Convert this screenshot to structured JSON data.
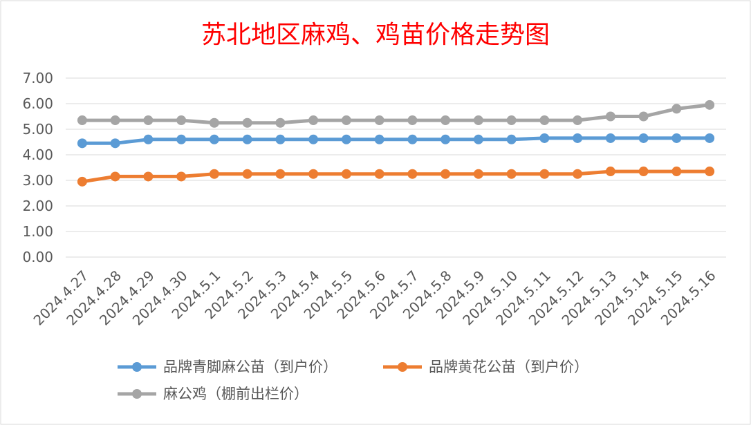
{
  "chart_data": {
    "type": "line",
    "title": "苏北地区麻鸡、鸡苗价格走势图",
    "categories": [
      "2024.4.27",
      "2024.4.28",
      "2024.4.29",
      "2024.4.30",
      "2024.5.1",
      "2024.5.2",
      "2024.5.3",
      "2024.5.4",
      "2024.5.5",
      "2024.5.6",
      "2024.5.7",
      "2024.5.8",
      "2024.5.9",
      "2024.5.10",
      "2024.5.11",
      "2024.5.12",
      "2024.5.13",
      "2024.5.14",
      "2024.5.15",
      "2024.5.16"
    ],
    "y_ticks": [
      "0.00",
      "1.00",
      "2.00",
      "3.00",
      "4.00",
      "5.00",
      "6.00",
      "7.00"
    ],
    "ylim": [
      0,
      7
    ],
    "grid": true,
    "legend_position": "bottom",
    "series": [
      {
        "name": "品牌青脚麻公苗（到户价）",
        "color": "#5b9bd5",
        "values": [
          4.45,
          4.45,
          4.6,
          4.6,
          4.6,
          4.6,
          4.6,
          4.6,
          4.6,
          4.6,
          4.6,
          4.6,
          4.6,
          4.6,
          4.65,
          4.65,
          4.65,
          4.65,
          4.65,
          4.65
        ]
      },
      {
        "name": "品牌黄花公苗（到户价）",
        "color": "#ed7d31",
        "values": [
          2.95,
          3.15,
          3.15,
          3.15,
          3.25,
          3.25,
          3.25,
          3.25,
          3.25,
          3.25,
          3.25,
          3.25,
          3.25,
          3.25,
          3.25,
          3.25,
          3.35,
          3.35,
          3.35,
          3.35
        ]
      },
      {
        "name": "麻公鸡（棚前出栏价）",
        "color": "#a5a5a5",
        "values": [
          5.35,
          5.35,
          5.35,
          5.35,
          5.25,
          5.25,
          5.25,
          5.35,
          5.35,
          5.35,
          5.35,
          5.35,
          5.35,
          5.35,
          5.35,
          5.35,
          5.5,
          5.5,
          5.8,
          5.95
        ]
      }
    ]
  }
}
